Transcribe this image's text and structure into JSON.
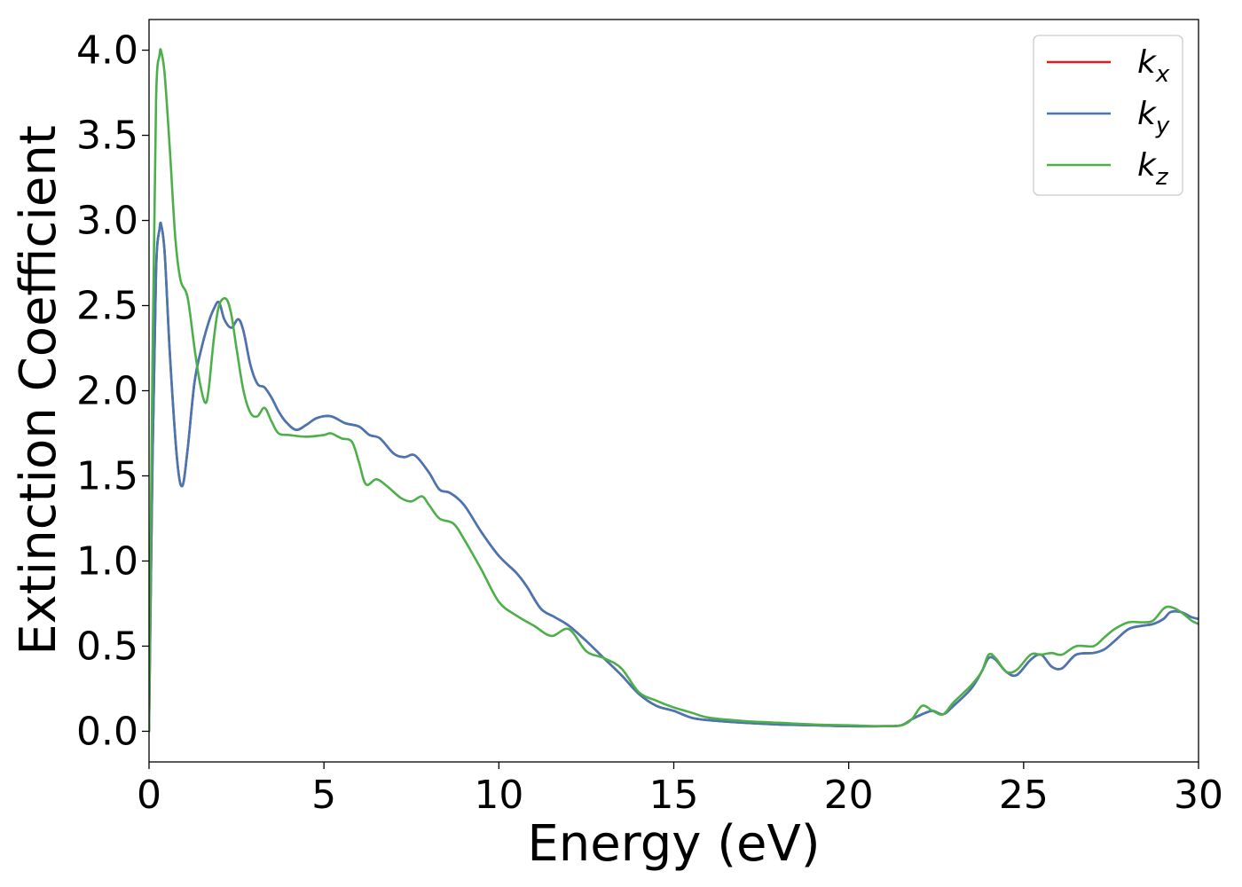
{
  "chart_data": {
    "type": "line",
    "xlabel": "Energy (eV)",
    "ylabel": "Extinction Coefficient",
    "xlim": [
      0,
      30
    ],
    "ylim": [
      -0.18,
      4.18
    ],
    "xticks": [
      0,
      5,
      10,
      15,
      20,
      25,
      30
    ],
    "xtick_labels": [
      "0",
      "5",
      "10",
      "15",
      "20",
      "25",
      "30"
    ],
    "yticks": [
      0.0,
      0.5,
      1.0,
      1.5,
      2.0,
      2.5,
      3.0,
      3.5,
      4.0
    ],
    "ytick_labels": [
      "0.0",
      "0.5",
      "1.0",
      "1.5",
      "2.0",
      "2.5",
      "3.0",
      "3.5",
      "4.0"
    ],
    "grid": false,
    "legend_position": "top-right",
    "series": [
      {
        "name_base": "k",
        "name_sub": "x",
        "color": "#e41a1c",
        "x": [
          0,
          0.1,
          0.2,
          0.3,
          0.35,
          0.45,
          0.6,
          0.8,
          0.95,
          1.1,
          1.3,
          1.5,
          1.7,
          1.85,
          2.0,
          2.15,
          2.35,
          2.55,
          2.7,
          2.9,
          3.1,
          3.3,
          3.5,
          3.7,
          3.9,
          4.2,
          4.5,
          4.8,
          5.2,
          5.6,
          6.0,
          6.3,
          6.6,
          7.0,
          7.3,
          7.6,
          8.0,
          8.3,
          8.6,
          9.0,
          9.5,
          10.0,
          10.5,
          10.8,
          11.2,
          11.6,
          12.0,
          12.5,
          13.0,
          13.5,
          14.0,
          14.5,
          15.0,
          15.5,
          16.0,
          17.0,
          18.0,
          19.0,
          20.0,
          21.0,
          21.5,
          21.8,
          22.1,
          22.4,
          22.7,
          23.0,
          23.5,
          23.8,
          24.0,
          24.2,
          24.5,
          24.8,
          25.2,
          25.5,
          25.8,
          26.1,
          26.5,
          27.0,
          27.3,
          27.6,
          28.0,
          28.4,
          28.7,
          29.0,
          29.2,
          29.5,
          29.8,
          30.0
        ],
        "y": [
          0.0,
          1.6,
          2.7,
          2.95,
          2.97,
          2.8,
          2.2,
          1.6,
          1.44,
          1.65,
          2.05,
          2.25,
          2.4,
          2.48,
          2.52,
          2.42,
          2.37,
          2.42,
          2.35,
          2.15,
          2.04,
          2.02,
          1.96,
          1.88,
          1.82,
          1.77,
          1.8,
          1.84,
          1.85,
          1.81,
          1.79,
          1.74,
          1.72,
          1.63,
          1.61,
          1.62,
          1.52,
          1.42,
          1.4,
          1.33,
          1.17,
          1.03,
          0.93,
          0.85,
          0.72,
          0.67,
          0.62,
          0.53,
          0.43,
          0.33,
          0.22,
          0.15,
          0.12,
          0.08,
          0.065,
          0.05,
          0.04,
          0.035,
          0.03,
          0.03,
          0.035,
          0.07,
          0.1,
          0.12,
          0.1,
          0.15,
          0.25,
          0.35,
          0.43,
          0.42,
          0.35,
          0.33,
          0.42,
          0.45,
          0.38,
          0.37,
          0.45,
          0.46,
          0.48,
          0.53,
          0.6,
          0.62,
          0.63,
          0.66,
          0.7,
          0.7,
          0.67,
          0.66
        ]
      },
      {
        "name_base": "k",
        "name_sub": "y",
        "color": "#4677b4",
        "x": [
          0,
          0.1,
          0.2,
          0.3,
          0.35,
          0.45,
          0.6,
          0.8,
          0.95,
          1.1,
          1.3,
          1.5,
          1.7,
          1.85,
          2.0,
          2.15,
          2.35,
          2.55,
          2.7,
          2.9,
          3.1,
          3.3,
          3.5,
          3.7,
          3.9,
          4.2,
          4.5,
          4.8,
          5.2,
          5.6,
          6.0,
          6.3,
          6.6,
          7.0,
          7.3,
          7.6,
          8.0,
          8.3,
          8.6,
          9.0,
          9.5,
          10.0,
          10.5,
          10.8,
          11.2,
          11.6,
          12.0,
          12.5,
          13.0,
          13.5,
          14.0,
          14.5,
          15.0,
          15.5,
          16.0,
          17.0,
          18.0,
          19.0,
          20.0,
          21.0,
          21.5,
          21.8,
          22.1,
          22.4,
          22.7,
          23.0,
          23.5,
          23.8,
          24.0,
          24.2,
          24.5,
          24.8,
          25.2,
          25.5,
          25.8,
          26.1,
          26.5,
          27.0,
          27.3,
          27.6,
          28.0,
          28.4,
          28.7,
          29.0,
          29.2,
          29.5,
          29.8,
          30.0
        ],
        "y": [
          0.0,
          1.6,
          2.7,
          2.95,
          2.97,
          2.8,
          2.2,
          1.6,
          1.44,
          1.65,
          2.05,
          2.25,
          2.4,
          2.48,
          2.52,
          2.42,
          2.37,
          2.42,
          2.35,
          2.15,
          2.04,
          2.02,
          1.96,
          1.88,
          1.82,
          1.77,
          1.8,
          1.84,
          1.85,
          1.81,
          1.79,
          1.74,
          1.72,
          1.63,
          1.61,
          1.62,
          1.52,
          1.42,
          1.4,
          1.33,
          1.17,
          1.03,
          0.93,
          0.85,
          0.72,
          0.67,
          0.62,
          0.53,
          0.43,
          0.33,
          0.22,
          0.15,
          0.12,
          0.08,
          0.065,
          0.05,
          0.04,
          0.035,
          0.03,
          0.03,
          0.035,
          0.07,
          0.1,
          0.12,
          0.1,
          0.15,
          0.25,
          0.35,
          0.43,
          0.42,
          0.35,
          0.33,
          0.42,
          0.45,
          0.38,
          0.37,
          0.45,
          0.46,
          0.48,
          0.53,
          0.6,
          0.62,
          0.63,
          0.66,
          0.7,
          0.7,
          0.67,
          0.66
        ]
      },
      {
        "name_base": "k",
        "name_sub": "z",
        "color": "#4daf4a",
        "x": [
          0,
          0.1,
          0.2,
          0.3,
          0.35,
          0.45,
          0.6,
          0.75,
          0.9,
          1.1,
          1.3,
          1.45,
          1.6,
          1.7,
          1.85,
          2.0,
          2.2,
          2.35,
          2.5,
          2.7,
          2.9,
          3.1,
          3.3,
          3.5,
          3.7,
          4.0,
          4.5,
          5.0,
          5.2,
          5.5,
          5.8,
          6.0,
          6.2,
          6.5,
          6.8,
          7.2,
          7.5,
          7.8,
          8.0,
          8.3,
          8.7,
          9.0,
          9.5,
          10.0,
          10.5,
          11.0,
          11.5,
          12.0,
          12.5,
          13.0,
          13.5,
          14.0,
          14.5,
          15.0,
          15.5,
          16.0,
          17.0,
          18.0,
          19.0,
          20.0,
          21.0,
          21.5,
          21.8,
          22.1,
          22.4,
          22.7,
          23.0,
          23.5,
          23.8,
          24.0,
          24.2,
          24.5,
          24.8,
          25.2,
          25.5,
          25.8,
          26.1,
          26.5,
          27.0,
          27.3,
          27.6,
          28.0,
          28.4,
          28.7,
          29.0,
          29.2,
          29.5,
          29.8,
          30.0
        ],
        "y": [
          0.0,
          2.2,
          3.7,
          3.97,
          3.99,
          3.85,
          3.4,
          2.9,
          2.65,
          2.55,
          2.25,
          2.05,
          1.93,
          2.0,
          2.3,
          2.5,
          2.54,
          2.45,
          2.25,
          2.0,
          1.87,
          1.85,
          1.9,
          1.82,
          1.75,
          1.74,
          1.73,
          1.74,
          1.75,
          1.72,
          1.7,
          1.58,
          1.45,
          1.48,
          1.44,
          1.37,
          1.35,
          1.38,
          1.33,
          1.25,
          1.22,
          1.13,
          0.95,
          0.76,
          0.68,
          0.62,
          0.56,
          0.6,
          0.47,
          0.43,
          0.37,
          0.23,
          0.18,
          0.14,
          0.11,
          0.08,
          0.06,
          0.05,
          0.04,
          0.035,
          0.03,
          0.035,
          0.07,
          0.15,
          0.12,
          0.1,
          0.17,
          0.27,
          0.35,
          0.45,
          0.43,
          0.35,
          0.36,
          0.45,
          0.45,
          0.46,
          0.45,
          0.5,
          0.5,
          0.55,
          0.6,
          0.64,
          0.64,
          0.65,
          0.72,
          0.73,
          0.7,
          0.65,
          0.63
        ]
      }
    ]
  }
}
